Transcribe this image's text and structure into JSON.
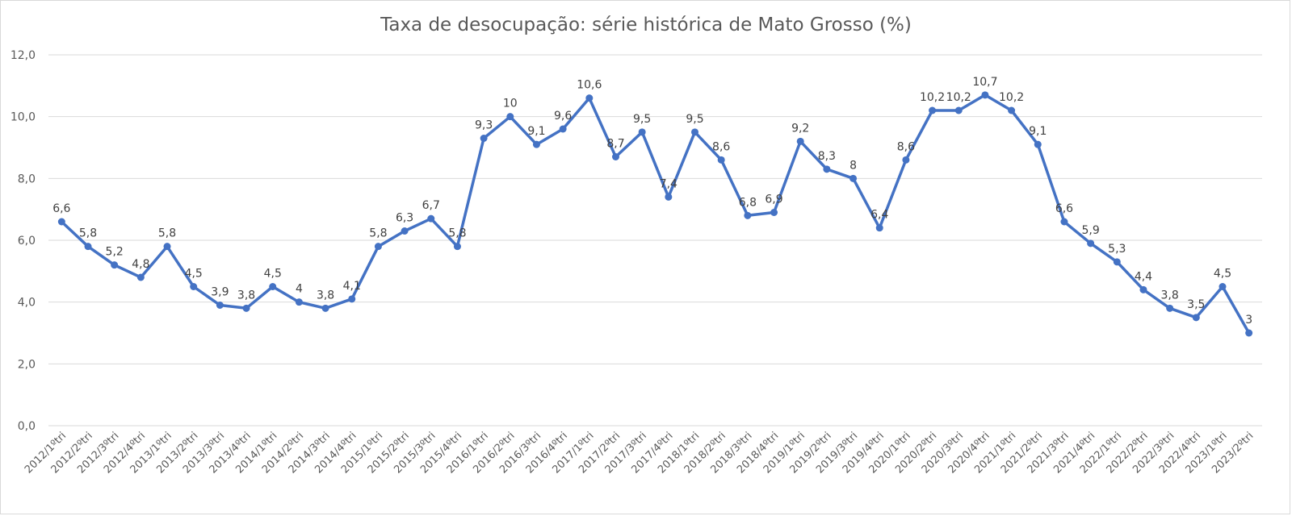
{
  "chart_data": {
    "type": "line",
    "title": "Taxa de desocupação: série histórica de Mato Grosso (%)",
    "xlabel": "",
    "ylabel": "",
    "ylim": [
      0,
      12
    ],
    "yticks": [
      "0,0",
      "2,0",
      "4,0",
      "6,0",
      "8,0",
      "10,0",
      "12,0"
    ],
    "grid": true,
    "legend": "none",
    "color": "#4472c4",
    "categories": [
      "2012/1ºtri",
      "2012/2ºtri",
      "2012/3ºtri",
      "2012/4ºtri",
      "2013/1ºtri",
      "2013/2ºtri",
      "2013/3ºtri",
      "2013/4ºtri",
      "2014/1ºtri",
      "2014/2ºtri",
      "2014/3ºtri",
      "2014/4ºtri",
      "2015/1ºtri",
      "2015/2ºtri",
      "2015/3ºtri",
      "2015/4ºtri",
      "2016/1ºtri",
      "2016/2ºtri",
      "2016/3ºtri",
      "2016/4ºtri",
      "2017/1ºtri",
      "2017/2ºtri",
      "2017/3ºtri",
      "2017/4ºtri",
      "2018/1ºtri",
      "2018/2ºtri",
      "2018/3ºtri",
      "2018/4ºtri",
      "2019/1ºtri",
      "2019/2ºtri",
      "2019/3ºtri",
      "2019/4ºtri",
      "2020/1ºtri",
      "2020/2ºtri",
      "2020/3ºtri",
      "2020/4ºtri",
      "2021/1ºtri",
      "2021/2ºtri",
      "2021/3ºtri",
      "2021/4ºtri",
      "2022/1ºtri",
      "2022/2ºtri",
      "2022/3ºtri",
      "2022/4ºtri",
      "2023/1ºtri",
      "2023/2ºtri"
    ],
    "values": [
      6.6,
      5.8,
      5.2,
      4.8,
      5.8,
      4.5,
      3.9,
      3.8,
      4.5,
      4,
      3.8,
      4.1,
      5.8,
      6.3,
      6.7,
      5.8,
      9.3,
      10,
      9.1,
      9.6,
      10.6,
      8.7,
      9.5,
      7.4,
      9.5,
      8.6,
      6.8,
      6.9,
      9.2,
      8.3,
      8,
      6.4,
      8.6,
      10.2,
      10.2,
      10.7,
      10.2,
      9.1,
      6.6,
      5.9,
      5.3,
      4.4,
      3.8,
      3.5,
      4.5,
      3
    ],
    "data_labels": [
      "6,6",
      "5,8",
      "5,2",
      "4,8",
      "5,8",
      "4,5",
      "3,9",
      "3,8",
      "4,5",
      "4",
      "3,8",
      "4,1",
      "5,8",
      "6,3",
      "6,7",
      "5,8",
      "9,3",
      "10",
      "9,1",
      "9,6",
      "10,6",
      "8,7",
      "9,5",
      "7,4",
      "9,5",
      "8,6",
      "6,8",
      "6,9",
      "9,2",
      "8,3",
      "8",
      "6,4",
      "8,6",
      "10,2",
      "10,2",
      "10,7",
      "10,2",
      "9,1",
      "6,6",
      "5,9",
      "5,3",
      "4,4",
      "3,8",
      "3,5",
      "4,5",
      "3"
    ]
  }
}
